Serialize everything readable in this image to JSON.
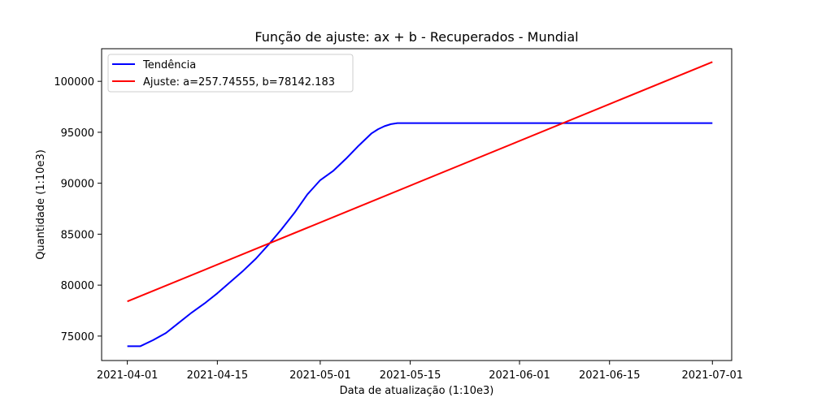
{
  "chart_data": {
    "type": "line",
    "title": "Função de ajuste: ax + b - Recuperados - Mundial",
    "xlabel": "Data de atualização (1:10e3)",
    "ylabel": "Quantidade (1:10e3)",
    "xlim": [
      "2021-03-28",
      "2021-07-04"
    ],
    "ylim": [
      72600,
      103200
    ],
    "x_ticks": [
      "2021-04-01",
      "2021-04-15",
      "2021-05-01",
      "2021-05-15",
      "2021-06-01",
      "2021-06-15",
      "2021-07-01"
    ],
    "y_ticks": [
      75000,
      80000,
      85000,
      90000,
      95000,
      100000
    ],
    "grid": false,
    "legend": "upper-left",
    "series": [
      {
        "name": "Tendência",
        "color": "#0000ff",
        "x": [
          "2021-04-01",
          "2021-04-03",
          "2021-04-05",
          "2021-04-07",
          "2021-04-09",
          "2021-04-11",
          "2021-04-13",
          "2021-04-15",
          "2021-04-17",
          "2021-04-19",
          "2021-04-21",
          "2021-04-23",
          "2021-04-25",
          "2021-04-27",
          "2021-04-29",
          "2021-05-01",
          "2021-05-03",
          "2021-05-05",
          "2021-05-07",
          "2021-05-09",
          "2021-05-10",
          "2021-05-11",
          "2021-05-12",
          "2021-05-13",
          "2021-05-14",
          "2021-05-15",
          "2021-06-01",
          "2021-06-15",
          "2021-07-01"
        ],
        "values": [
          74000,
          74000,
          74600,
          75300,
          76300,
          77300,
          78200,
          79200,
          80300,
          81400,
          82600,
          84000,
          85500,
          87100,
          88900,
          90300,
          91200,
          92400,
          93700,
          94900,
          95300,
          95600,
          95800,
          95900,
          95900,
          95900,
          95900,
          95900,
          95900
        ]
      },
      {
        "name": "Ajuste: a=257.74555, b=78142.183",
        "color": "#ff0000",
        "x": [
          "2021-04-01",
          "2021-07-01"
        ],
        "values": [
          78400,
          101900
        ]
      }
    ]
  }
}
